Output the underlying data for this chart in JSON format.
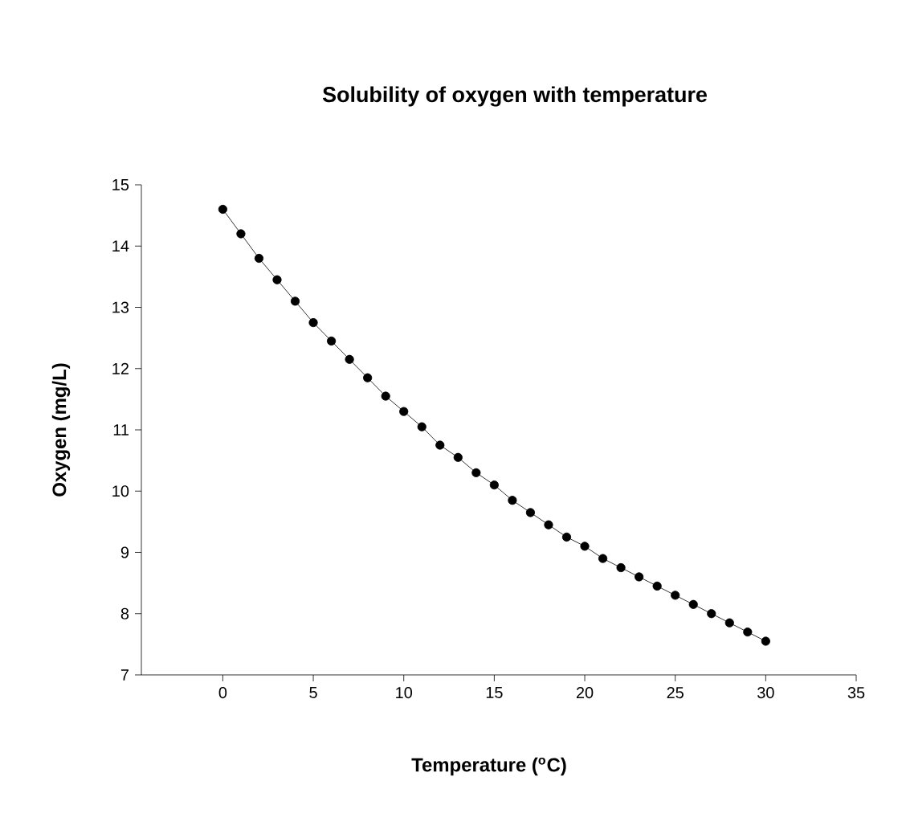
{
  "chart_data": {
    "type": "line",
    "title": "Solubility of oxygen with temperature",
    "xlabel": "Temperature ($^{o}$C)",
    "ylabel": "Oxygen (mg/L)",
    "x": [
      0,
      1,
      2,
      3,
      4,
      5,
      6,
      7,
      8,
      9,
      10,
      11,
      12,
      13,
      14,
      15,
      16,
      17,
      18,
      19,
      20,
      21,
      22,
      23,
      24,
      25,
      26,
      27,
      28,
      29,
      30
    ],
    "series": [
      {
        "color": "#000000",
        "values": [
          14.6,
          14.2,
          13.8,
          13.45,
          13.1,
          12.75,
          12.45,
          12.15,
          11.85,
          11.55,
          11.3,
          11.05,
          10.75,
          10.55,
          10.3,
          10.1,
          9.85,
          9.65,
          9.45,
          9.25,
          9.1,
          8.9,
          8.75,
          8.6,
          8.45,
          8.3,
          8.15,
          8.0,
          7.85,
          7.7,
          7.55
        ]
      }
    ],
    "xlim": [
      -4.5,
      35
    ],
    "ylim": [
      7,
      15
    ],
    "xticks": [
      0,
      5,
      10,
      15,
      20,
      25,
      30,
      35
    ],
    "yticks": [
      7,
      8,
      9,
      10,
      11,
      12,
      13,
      14,
      15
    ],
    "marker": "circle",
    "line_style": "solid"
  }
}
